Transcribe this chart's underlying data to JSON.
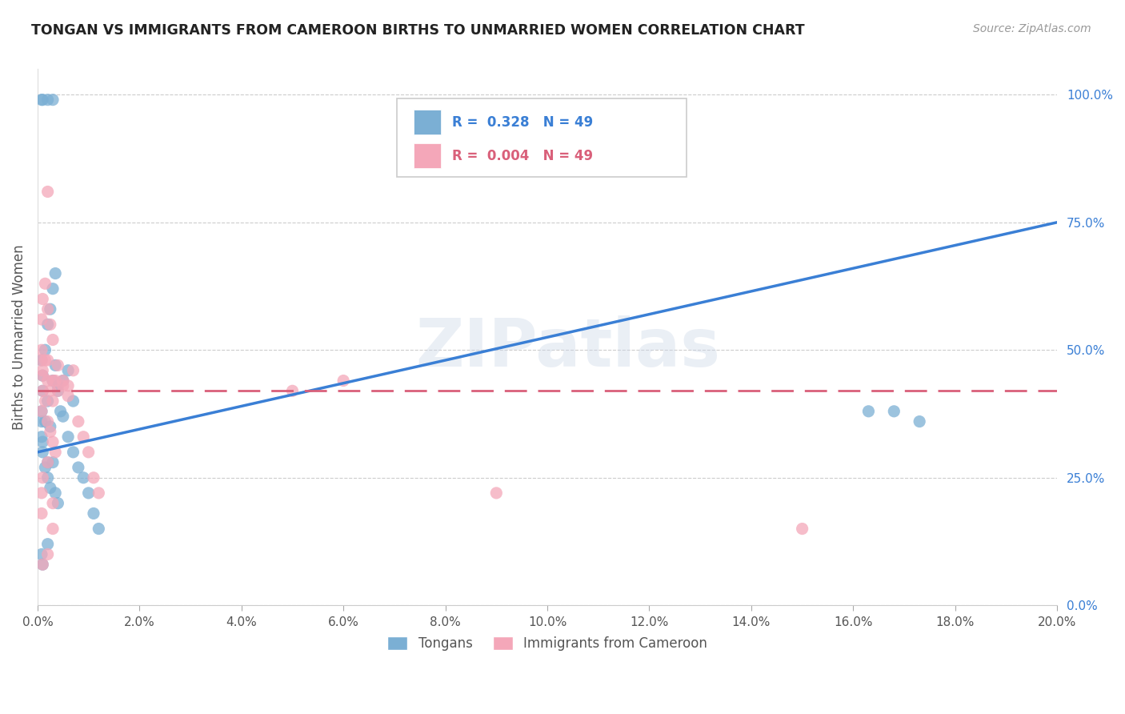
{
  "title": "TONGAN VS IMMIGRANTS FROM CAMEROON BIRTHS TO UNMARRIED WOMEN CORRELATION CHART",
  "source": "Source: ZipAtlas.com",
  "ylabel": "Births to Unmarried Women",
  "xlabel_ticks": [
    "0.0%",
    "2.0%",
    "4.0%",
    "6.0%",
    "8.0%",
    "10.0%",
    "12.0%",
    "14.0%",
    "16.0%",
    "18.0%",
    "20.0%"
  ],
  "ylabel_ticks": [
    "0.0%",
    "25.0%",
    "50.0%",
    "75.0%",
    "100.0%"
  ],
  "xmin": 0.0,
  "xmax": 0.2,
  "ymin": 0.0,
  "ymax": 1.05,
  "blue_R": 0.328,
  "blue_N": 49,
  "pink_R": 0.004,
  "pink_N": 49,
  "blue_label": "Tongans",
  "pink_label": "Immigrants from Cameroon",
  "blue_color": "#7bafd4",
  "pink_color": "#f4a7b9",
  "blue_line_color": "#3a7fd5",
  "pink_line_color": "#d9607a",
  "blue_line_x": [
    0.0,
    0.2
  ],
  "blue_line_y": [
    0.3,
    0.75
  ],
  "pink_line_x": [
    0.0,
    0.2
  ],
  "pink_line_y": [
    0.42,
    0.42
  ],
  "blue_scatter_x": [
    0.0008,
    0.001,
    0.0015,
    0.002,
    0.0025,
    0.003,
    0.0035,
    0.004,
    0.0045,
    0.0008,
    0.001,
    0.0015,
    0.002,
    0.0025,
    0.003,
    0.0035,
    0.004,
    0.0008,
    0.001,
    0.0015,
    0.002,
    0.0025,
    0.003,
    0.0035,
    0.005,
    0.006,
    0.007,
    0.008,
    0.009,
    0.01,
    0.011,
    0.012,
    0.0008,
    0.001,
    0.002,
    0.003,
    0.004,
    0.005,
    0.006,
    0.007,
    0.0008,
    0.001,
    0.002,
    0.0008,
    0.001,
    0.002,
    0.163,
    0.168,
    0.173
  ],
  "blue_scatter_y": [
    0.38,
    0.42,
    0.36,
    0.4,
    0.35,
    0.44,
    0.47,
    0.43,
    0.38,
    0.33,
    0.3,
    0.27,
    0.25,
    0.23,
    0.28,
    0.22,
    0.2,
    0.48,
    0.45,
    0.5,
    0.55,
    0.58,
    0.62,
    0.65,
    0.37,
    0.33,
    0.3,
    0.27,
    0.25,
    0.22,
    0.18,
    0.15,
    0.99,
    0.99,
    0.99,
    0.99,
    0.42,
    0.44,
    0.46,
    0.4,
    0.1,
    0.08,
    0.12,
    0.36,
    0.32,
    0.28,
    0.38,
    0.38,
    0.36
  ],
  "pink_scatter_x": [
    0.0008,
    0.001,
    0.0015,
    0.002,
    0.0025,
    0.003,
    0.0035,
    0.004,
    0.0008,
    0.001,
    0.0015,
    0.002,
    0.0025,
    0.003,
    0.0035,
    0.0008,
    0.001,
    0.0015,
    0.002,
    0.0025,
    0.003,
    0.005,
    0.006,
    0.007,
    0.008,
    0.009,
    0.01,
    0.011,
    0.012,
    0.0008,
    0.001,
    0.002,
    0.003,
    0.004,
    0.005,
    0.006,
    0.0008,
    0.001,
    0.002,
    0.003,
    0.002,
    0.06,
    0.09,
    0.05,
    0.15,
    0.0008,
    0.001,
    0.002,
    0.003
  ],
  "pink_scatter_y": [
    0.5,
    0.46,
    0.48,
    0.44,
    0.42,
    0.4,
    0.44,
    0.47,
    0.38,
    0.42,
    0.4,
    0.36,
    0.34,
    0.32,
    0.3,
    0.56,
    0.6,
    0.63,
    0.58,
    0.55,
    0.52,
    0.44,
    0.43,
    0.46,
    0.36,
    0.33,
    0.3,
    0.25,
    0.22,
    0.48,
    0.45,
    0.48,
    0.44,
    0.42,
    0.43,
    0.41,
    0.18,
    0.08,
    0.1,
    0.2,
    0.81,
    0.44,
    0.22,
    0.42,
    0.15,
    0.22,
    0.25,
    0.28,
    0.15
  ]
}
